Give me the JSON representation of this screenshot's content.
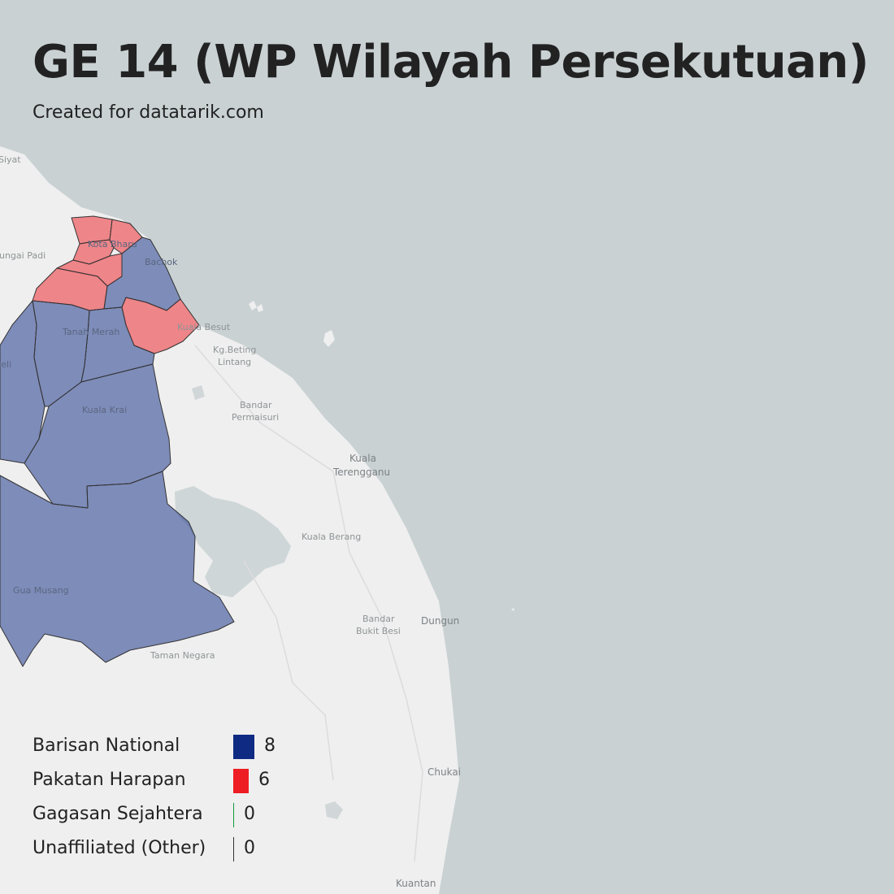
{
  "title": "GE 14 (WP Wilayah Persekutuan)",
  "subtitle": "Created for datatarik.com",
  "colors": {
    "sea": "#c9d1d3",
    "land": "#efefef",
    "barisan_national": "#0e2a83",
    "pakatan_harapan": "#ee1c23",
    "gagasan_sejahtera": "#159a3b",
    "unaffiliated": "#333333"
  },
  "places": [
    {
      "id": "siyat",
      "label": "Siyat"
    },
    {
      "id": "sungai-padi",
      "label": "Sungai Padi"
    },
    {
      "id": "kota-bharu",
      "label": "Kota Bharu"
    },
    {
      "id": "bachok",
      "label": "Bachok"
    },
    {
      "id": "tanah-merah",
      "label": "Tanah Merah"
    },
    {
      "id": "jeli",
      "label": "Jeli"
    },
    {
      "id": "kuala-besut",
      "label": "Kuala Besut"
    },
    {
      "id": "kg-beting",
      "label": "Kg.Beting"
    },
    {
      "id": "lintang",
      "label": "Lintang"
    },
    {
      "id": "bandar-permaisuri-1",
      "label": "Bandar"
    },
    {
      "id": "bandar-permaisuri-2",
      "label": "Permaisuri"
    },
    {
      "id": "kuala-krai",
      "label": "Kuala Krai"
    },
    {
      "id": "kuala-terengganu-1",
      "label": "Kuala"
    },
    {
      "id": "kuala-terengganu-2",
      "label": "Terengganu"
    },
    {
      "id": "kuala-berang",
      "label": "Kuala Berang"
    },
    {
      "id": "gua-musang",
      "label": "Gua Musang"
    },
    {
      "id": "bandar-bukit-besi-1",
      "label": "Bandar"
    },
    {
      "id": "bandar-bukit-besi-2",
      "label": "Bukit Besi"
    },
    {
      "id": "dungun",
      "label": "Dungun"
    },
    {
      "id": "taman-negara",
      "label": "Taman Negara"
    },
    {
      "id": "chukai",
      "label": "Chukai"
    },
    {
      "id": "kuantan",
      "label": "Kuantan"
    }
  ],
  "legend": [
    {
      "label": "Barisan National",
      "count": 8,
      "color": "#0e2a83"
    },
    {
      "label": "Pakatan Harapan",
      "count": 6,
      "color": "#ee1c23"
    },
    {
      "label": "Gagasan Sejahtera",
      "count": 0,
      "color": "#159a3b"
    },
    {
      "label": "Unaffiliated (Other)",
      "count": 0,
      "color": "#333333"
    }
  ]
}
